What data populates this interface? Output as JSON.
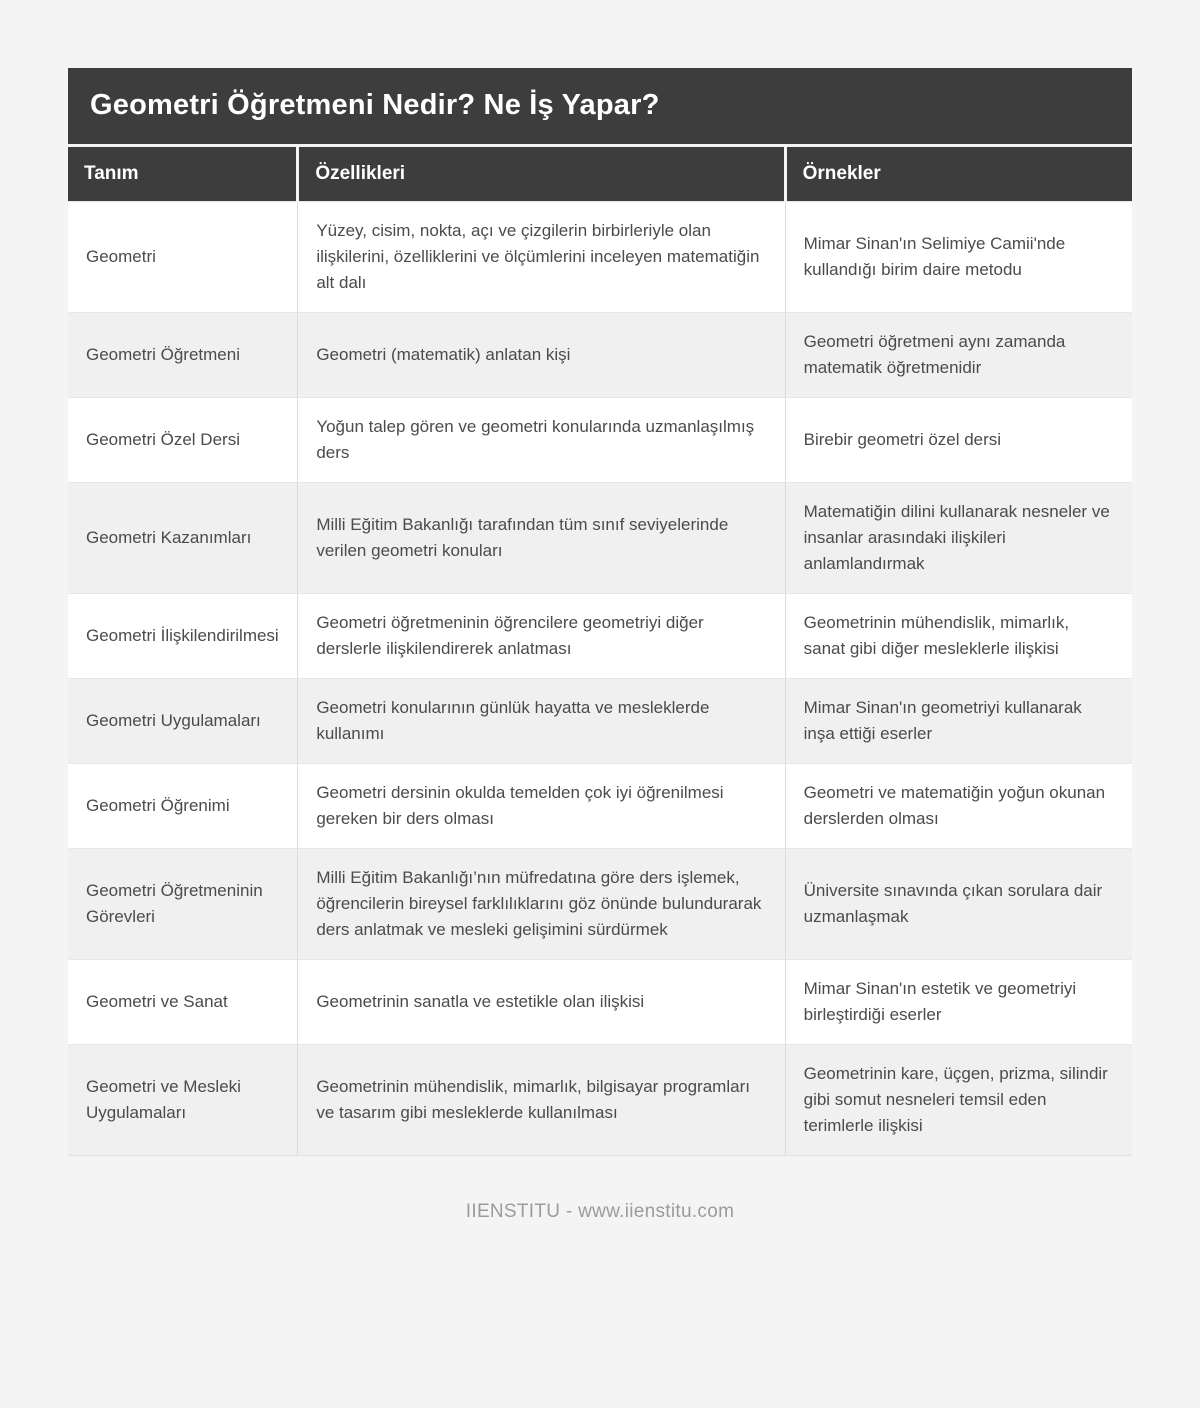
{
  "page": {
    "title": "Geometri Öğretmeni Nedir? Ne İş Yapar?",
    "footer": "IIENSTITU - www.iienstitu.com"
  },
  "colors": {
    "header_background": "#3d3d3d",
    "header_text": "#ffffff",
    "row_white": "#ffffff",
    "row_alternate": "#f0f0f0",
    "body_text": "#4b4b4b",
    "page_background": "#f4f4f4",
    "footer_text": "#9b9b9b"
  },
  "table": {
    "columns": [
      "Tanım",
      "Özellikleri",
      "Örnekler"
    ],
    "rows": [
      {
        "tanim": "Geometri",
        "ozellikleri": "Yüzey, cisim, nokta, açı ve çizgilerin birbirleriyle olan ilişkilerini, özelliklerini ve ölçümlerini inceleyen matematiğin alt dalı",
        "ornekler": "Mimar Sinan'ın Selimiye Camii'nde kullandığı birim daire metodu"
      },
      {
        "tanim": "Geometri Öğretmeni",
        "ozellikleri": "Geometri (matematik) anlatan kişi",
        "ornekler": "Geometri öğretmeni aynı zamanda matematik öğretmenidir"
      },
      {
        "tanim": "Geometri Özel Dersi",
        "ozellikleri": "Yoğun talep gören ve geometri konularında uzmanlaşılmış ders",
        "ornekler": "Birebir geometri özel dersi"
      },
      {
        "tanim": "Geometri Kazanımları",
        "ozellikleri": "Milli Eğitim Bakanlığı tarafından tüm sınıf seviyelerinde verilen geometri konuları",
        "ornekler": "Matematiğin dilini kullanarak nesneler ve insanlar arasındaki ilişkileri anlamlandırmak"
      },
      {
        "tanim": "Geometri İlişkilendirilmesi",
        "ozellikleri": "Geometri öğretmeninin öğrencilere geometriyi diğer derslerle ilişkilendirerek anlatması",
        "ornekler": "Geometrinin mühendislik, mimarlık, sanat gibi diğer mesleklerle ilişkisi"
      },
      {
        "tanim": "Geometri Uygulamaları",
        "ozellikleri": "Geometri konularının günlük hayatta ve mesleklerde kullanımı",
        "ornekler": "Mimar Sinan'ın geometriyi kullanarak inşa ettiği eserler"
      },
      {
        "tanim": "Geometri Öğrenimi",
        "ozellikleri": "Geometri dersinin okulda temelden çok iyi öğrenilmesi gereken bir ders olması",
        "ornekler": "Geometri ve matematiğin yoğun okunan derslerden olması"
      },
      {
        "tanim": "Geometri Öğretmeninin Görevleri",
        "ozellikleri": "Milli Eğitim Bakanlığı’nın müfredatına göre ders işlemek, öğrencilerin bireysel farklılıklarını göz önünde bulundurarak ders anlatmak ve mesleki gelişimini sürdürmek",
        "ornekler": "Üniversite sınavında çıkan sorulara dair uzmanlaşmak"
      },
      {
        "tanim": "Geometri ve Sanat",
        "ozellikleri": "Geometrinin sanatla ve estetikle olan ilişkisi",
        "ornekler": "Mimar Sinan'ın estetik ve geometriyi birleştirdiği eserler"
      },
      {
        "tanim": "Geometri ve Mesleki Uygulamaları",
        "ozellikleri": "Geometrinin mühendislik, mimarlık, bilgisayar programları ve tasarım gibi mesleklerde kullanılması",
        "ornekler": "Geometrinin kare, üçgen, prizma, silindir gibi somut nesneleri temsil eden terimlerle ilişkisi"
      }
    ]
  }
}
